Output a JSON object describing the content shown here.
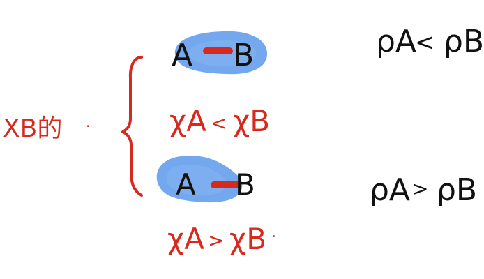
{
  "colors": {
    "red_ink": "#d62a1e",
    "black_ink": "#111111",
    "blue_highlight": "#3f86e8",
    "blue_highlight_light": "#8fbaf2"
  },
  "left_label": "XB的",
  "left_dot": ".",
  "top_bond": {
    "atom_a": "A",
    "atom_b": "B"
  },
  "top_relation": {
    "lhs": "χA",
    "op": "<",
    "rhs": "χB"
  },
  "bottom_bond": {
    "atom_a": "A",
    "atom_b": "B"
  },
  "bottom_relation": {
    "lhs": "χA",
    "op": ">",
    "rhs": "χB",
    "trailing_dot": "."
  },
  "right_top": {
    "lhs": "ρA",
    "op": "<",
    "rhs": "ρB"
  },
  "right_bottom": {
    "lhs": "ρA",
    "op": ">",
    "rhs": "ρB"
  }
}
